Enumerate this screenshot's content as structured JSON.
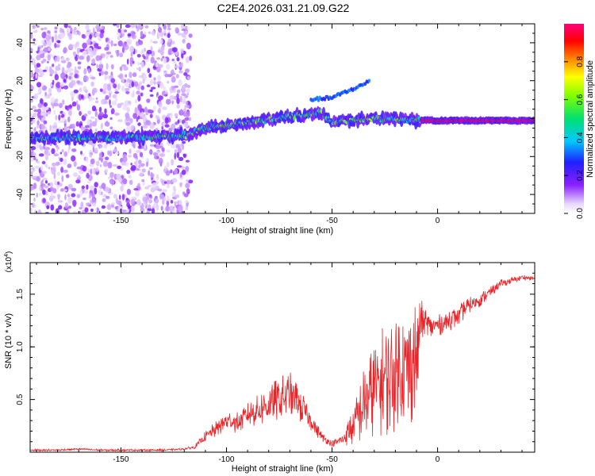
{
  "figure_title": "C2E4.2026.031.21.09.G22",
  "colors": {
    "snr_line": "#e8262a",
    "spec_low": "#e6d8ff",
    "spec_mid": "#7a00e8",
    "spec_high": "#ff0066"
  },
  "chart_data": [
    {
      "type": "heatmap",
      "title": "",
      "xlabel": "Height of straight line (km)",
      "ylabel": "Frequency (Hz)",
      "xlim": [
        -193,
        46
      ],
      "ylim": [
        -50,
        50
      ],
      "x_ticks": [
        -150,
        -100,
        -50,
        0
      ],
      "y_ticks": [
        -40,
        -20,
        0,
        20,
        40
      ],
      "x_tick_labels": [
        "-150",
        "-100",
        "-50",
        "0"
      ],
      "y_tick_labels": [
        "-40",
        "-20",
        "0",
        "20",
        "40"
      ],
      "grid": false,
      "colorbar": {
        "label": "Normalized spectral amplitude",
        "range": [
          0,
          1
        ],
        "ticks": [
          0.0,
          0.2,
          0.4,
          0.6,
          0.8
        ],
        "tick_labels": [
          "0.0",
          "0.2",
          "0.4",
          "0.6",
          "0.8"
        ],
        "colormap": "rainbow (violet-blue-cyan-green-yellow-red-magenta)"
      },
      "features": [
        {
          "description": "diffuse scattered noise",
          "x_range": [
            -193,
            -117
          ],
          "freq_range": [
            -50,
            50
          ],
          "amplitude": 0.1
        },
        {
          "description": "signal trace",
          "points": [
            [
              -193,
              -10
            ],
            [
              -150,
              -10
            ],
            [
              -120,
              -9
            ],
            [
              -110,
              -5
            ],
            [
              -90,
              -2
            ],
            [
              -70,
              1
            ],
            [
              -55,
              3
            ],
            [
              -50,
              -2
            ],
            [
              -30,
              0
            ],
            [
              -20,
              0
            ],
            [
              -10,
              -1
            ],
            [
              0,
              -1
            ],
            [
              46,
              -1
            ]
          ],
          "amplitude_low_x": 0.3,
          "amplitude_high_x": 0.95
        },
        {
          "description": "secondary branch",
          "points": [
            [
              -60,
              10
            ],
            [
              -50,
              11
            ],
            [
              -35,
              18
            ],
            [
              -32,
              20
            ]
          ],
          "amplitude": 0.25
        }
      ]
    },
    {
      "type": "line",
      "title": "",
      "xlabel": "Height of straight line (km)",
      "ylabel": "SNR (10 * v/v)",
      "y_multiplier": "(x10^4)",
      "xlim": [
        -193,
        46
      ],
      "ylim": [
        0,
        1.8
      ],
      "x_ticks": [
        -150,
        -100,
        -50,
        0
      ],
      "y_ticks": [
        0.5,
        1.0,
        1.5
      ],
      "x_tick_labels": [
        "-150",
        "-100",
        "-50",
        "0"
      ],
      "y_tick_labels": [
        "0.5",
        "1.0",
        "1.5"
      ],
      "grid": false,
      "series": [
        {
          "color": "#e8262a",
          "x": [
            -193,
            -180,
            -170,
            -160,
            -150,
            -140,
            -130,
            -120,
            -115,
            -110,
            -105,
            -100,
            -95,
            -90,
            -85,
            -80,
            -75,
            -70,
            -65,
            -60,
            -55,
            -50,
            -45,
            -40,
            -35,
            -30,
            -25,
            -20,
            -15,
            -12,
            -10,
            -8,
            -5,
            0,
            5,
            10,
            15,
            20,
            25,
            30,
            35,
            40,
            46
          ],
          "y": [
            0.02,
            0.02,
            0.03,
            0.02,
            0.02,
            0.02,
            0.02,
            0.03,
            0.05,
            0.15,
            0.22,
            0.3,
            0.28,
            0.35,
            0.4,
            0.45,
            0.5,
            0.55,
            0.45,
            0.3,
            0.15,
            0.08,
            0.12,
            0.25,
            0.45,
            0.6,
            0.7,
            0.75,
            0.8,
            0.85,
            0.9,
            1.25,
            1.2,
            1.2,
            1.25,
            1.3,
            1.4,
            1.45,
            1.52,
            1.6,
            1.63,
            1.66,
            1.65
          ],
          "noise_amplitude": [
            0.01,
            0.01,
            0.01,
            0.01,
            0.01,
            0.01,
            0.01,
            0.01,
            0.02,
            0.05,
            0.08,
            0.1,
            0.1,
            0.12,
            0.15,
            0.2,
            0.22,
            0.22,
            0.18,
            0.1,
            0.05,
            0.03,
            0.06,
            0.2,
            0.35,
            0.45,
            0.55,
            0.6,
            0.6,
            0.6,
            0.55,
            0.22,
            0.15,
            0.1,
            0.12,
            0.1,
            0.08,
            0.07,
            0.05,
            0.04,
            0.03,
            0.03,
            0.02
          ]
        }
      ]
    }
  ]
}
